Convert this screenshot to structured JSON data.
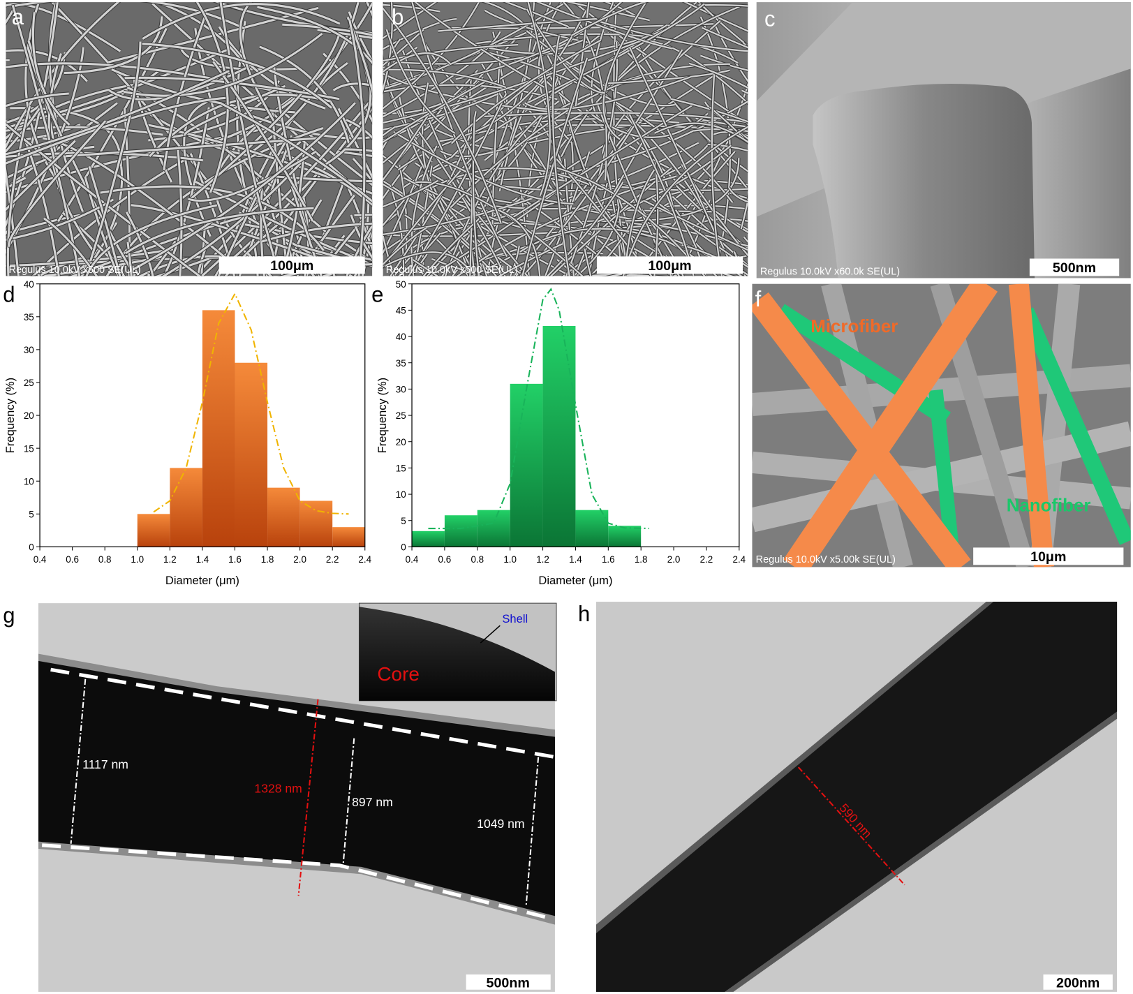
{
  "panels": {
    "a": {
      "label": "a",
      "caption": "Regulus 10.0kV x500 SE(UL)",
      "scale_bar": "100μm"
    },
    "b": {
      "label": "b",
      "caption": "Regulus 10.0kV x500 SE(UL)",
      "scale_bar": "100μm"
    },
    "c": {
      "label": "c",
      "caption": "Regulus 10.0kV x60.0k SE(UL)",
      "scale_bar": "500nm"
    },
    "f": {
      "label": "f",
      "caption": "Regulus 10.0kV x5.00k SE(UL)",
      "scale_bar": "10μm",
      "microfiber": "Microfiber",
      "nanofiber": "Nanofiber"
    },
    "g": {
      "label": "g",
      "scale_bar": "500nm",
      "inset_core": "Core",
      "inset_shell": "Shell",
      "measurements": [
        "1117 nm",
        "1328 nm",
        "897 nm",
        "1049 nm"
      ]
    },
    "h": {
      "label": "h",
      "scale_bar": "200nm",
      "measurement": "590 nm"
    }
  },
  "chart_data": [
    {
      "type": "histogram",
      "panel_label": "d",
      "xlabel": "Diameter (μm)",
      "ylabel": "Frequency (%)",
      "bins": [
        1.0,
        1.2,
        1.4,
        1.6,
        1.8,
        2.0,
        2.2,
        2.4
      ],
      "values": [
        5,
        12,
        36,
        28,
        9,
        7,
        3
      ],
      "color": "#f58a3a",
      "color_dark": "#b8420c",
      "fit": {
        "color": "#f0b400",
        "x": [
          1.1,
          1.2,
          1.3,
          1.4,
          1.5,
          1.6,
          1.7,
          1.8,
          1.9,
          2.0,
          2.1,
          2.2,
          2.3
        ],
        "y": [
          5.3,
          7,
          12,
          22,
          34,
          38.5,
          33,
          22,
          12,
          7,
          5.5,
          5.1,
          5
        ]
      },
      "xlim": [
        0.4,
        2.4
      ],
      "ylim": [
        0,
        40
      ],
      "xticks": [
        0.4,
        0.6,
        0.8,
        {
          "value": 1,
          "label": "1.0"
        },
        1.2,
        1.4,
        1.6,
        1.8,
        {
          "value": 2,
          "label": "2.0"
        },
        2.2,
        2.4
      ],
      "yticks": [
        0,
        5,
        10,
        15,
        20,
        25,
        30,
        35,
        40
      ]
    },
    {
      "type": "histogram",
      "panel_label": "e",
      "xlabel": "Diameter (μm)",
      "ylabel": "Frequency (%)",
      "bins": [
        0.4,
        0.6,
        0.8,
        1.0,
        1.2,
        1.4,
        1.6,
        1.8
      ],
      "values": [
        3,
        6,
        7,
        31,
        42,
        7,
        4
      ],
      "color": "#22d067",
      "color_dark": "#0b7535",
      "fit": {
        "color": "#19b35a",
        "x": [
          0.5,
          0.7,
          0.9,
          1.0,
          1.1,
          1.2,
          1.25,
          1.3,
          1.4,
          1.5,
          1.6,
          1.7,
          1.85
        ],
        "y": [
          3.5,
          3.5,
          4.5,
          12,
          30,
          47,
          49,
          45,
          27,
          10,
          4.5,
          3.6,
          3.5
        ]
      },
      "xlim": [
        0.4,
        2.4
      ],
      "ylim": [
        0,
        50
      ],
      "xticks": [
        0.4,
        0.6,
        0.8,
        {
          "value": 1,
          "label": "1.0"
        },
        1.2,
        1.4,
        1.6,
        1.8,
        {
          "value": 2,
          "label": "2.0"
        },
        2.2,
        2.4
      ],
      "yticks": [
        0,
        5,
        10,
        15,
        20,
        25,
        30,
        35,
        40,
        45,
        50
      ]
    }
  ]
}
